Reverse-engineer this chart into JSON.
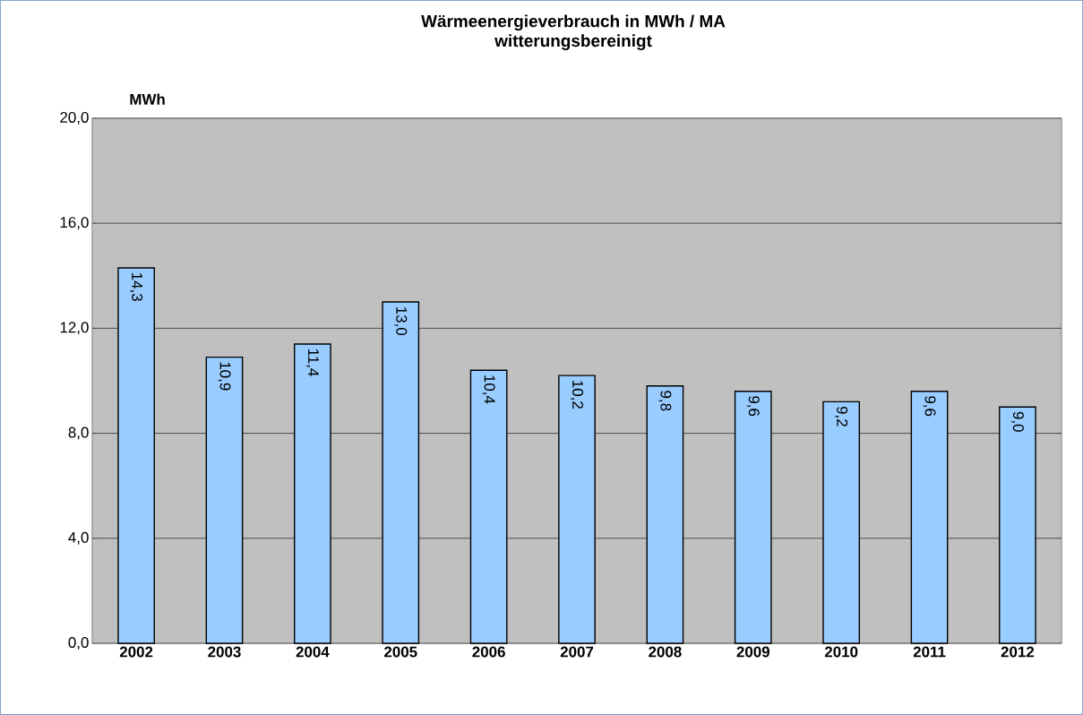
{
  "chart_data": {
    "type": "bar",
    "title": "Wärmeenergieverbrauch in MWh / MA",
    "subtitle": "witterungsbereinigt",
    "ylabel": "MWh",
    "categories": [
      "2002",
      "2003",
      "2004",
      "2005",
      "2006",
      "2007",
      "2008",
      "2009",
      "2010",
      "2011",
      "2012"
    ],
    "values": [
      14.3,
      10.9,
      11.4,
      13.0,
      10.4,
      10.2,
      9.8,
      9.6,
      9.2,
      9.6,
      9.0
    ],
    "value_labels": [
      "14,3",
      "10,9",
      "11,4",
      "13,0",
      "10,4",
      "10,2",
      "9,8",
      "9,6",
      "9,2",
      "9,6",
      "9,0"
    ],
    "color": "#99ccff",
    "ylim": [
      0,
      20
    ],
    "yticks": [
      {
        "value": 0,
        "label": "0,0"
      },
      {
        "value": 4,
        "label": "4,0"
      },
      {
        "value": 8,
        "label": "8,0"
      },
      {
        "value": 12,
        "label": "12,0"
      },
      {
        "value": 16,
        "label": "16,0"
      },
      {
        "value": 20,
        "label": "20,0"
      }
    ],
    "grid": "y"
  }
}
